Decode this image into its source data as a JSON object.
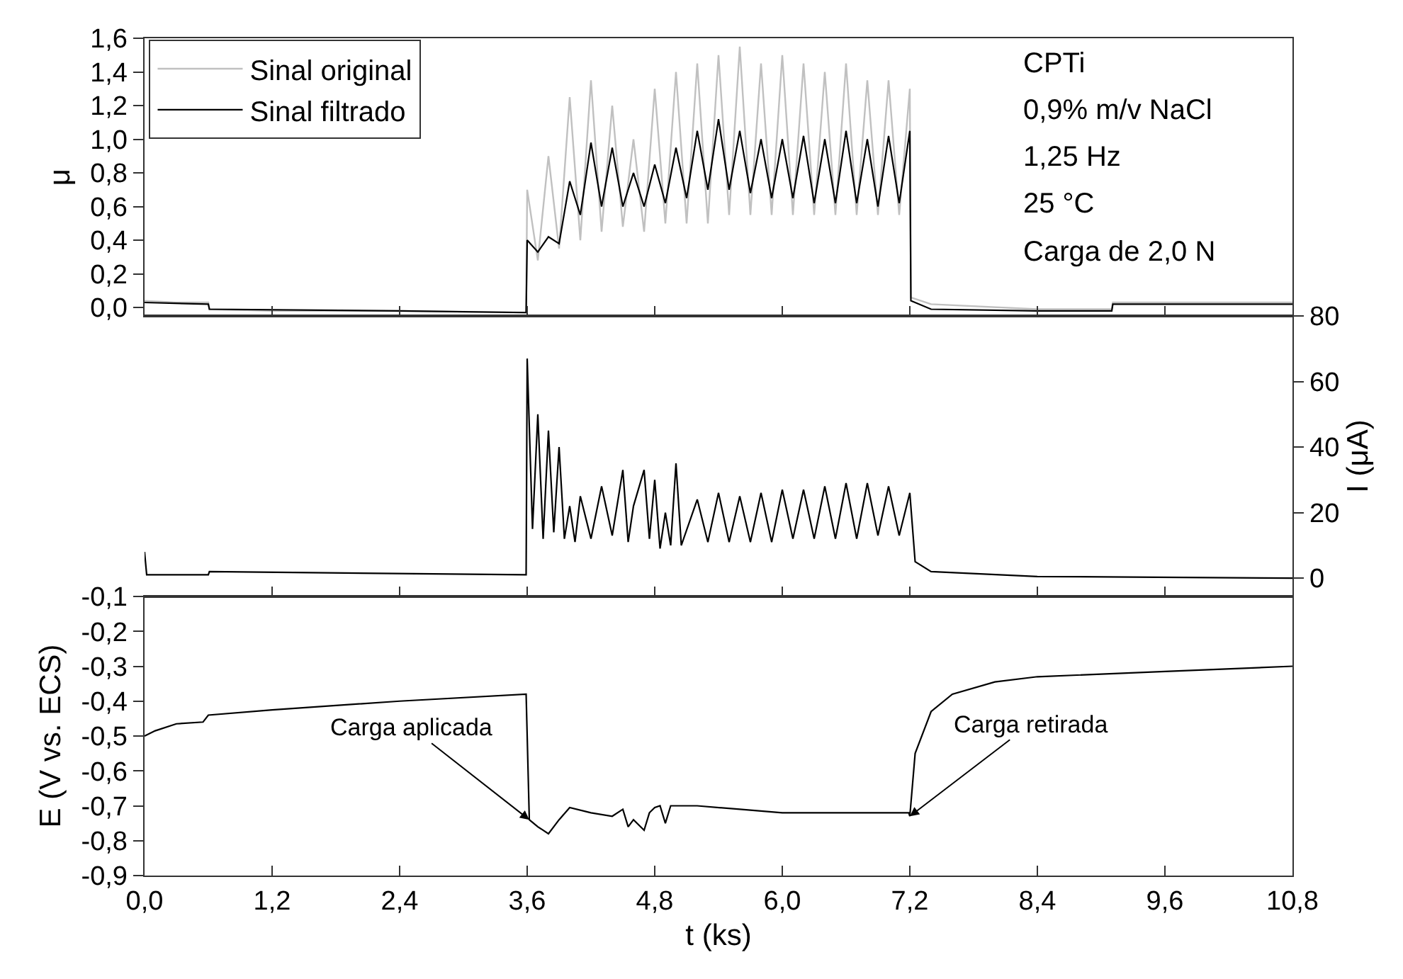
{
  "chart_data": [
    {
      "type": "line",
      "ylabel": "μ",
      "xlim": [
        0,
        10.8
      ],
      "xticks": [
        {
          "value": 0,
          "label": null
        },
        {
          "value": 1.2,
          "label": null
        },
        {
          "value": 2.4,
          "label": null
        },
        {
          "value": 3.6,
          "label": null
        },
        {
          "value": 4.8,
          "label": null
        },
        {
          "value": 6,
          "label": null
        },
        {
          "value": 7.2,
          "label": null
        },
        {
          "value": 8.4,
          "label": null
        },
        {
          "value": 9.6,
          "label": null
        },
        {
          "value": 10.8,
          "label": null
        }
      ],
      "ylim": [
        -0.05,
        1.6
      ],
      "yticks": [
        {
          "value": 0,
          "label": "0,0"
        },
        {
          "value": 0.2,
          "label": "0,2"
        },
        {
          "value": 0.4,
          "label": "0,4"
        },
        {
          "value": 0.6,
          "label": "0,6"
        },
        {
          "value": 0.8,
          "label": "0,8"
        },
        {
          "value": 1,
          "label": "1,0"
        },
        {
          "value": 1.2,
          "label": "1,2"
        },
        {
          "value": 1.4,
          "label": "1,4"
        },
        {
          "value": 1.6,
          "label": "1,6"
        }
      ],
      "tick_labels": "y",
      "legend": "top left",
      "annotations": [
        "CPTi",
        "0,9% m/v NaCl",
        "1,25 Hz",
        "25 °C",
        "Carga de 2,0 N"
      ],
      "series": [
        {
          "name": "Sinal original",
          "color": "#c0c0c0",
          "x": [
            0,
            0.3,
            0.6,
            0.61,
            1.2,
            2.4,
            3.59,
            3.6,
            3.7,
            3.8,
            3.9,
            4.0,
            4.1,
            4.2,
            4.3,
            4.4,
            4.5,
            4.6,
            4.7,
            4.8,
            4.9,
            5.0,
            5.1,
            5.2,
            5.3,
            5.4,
            5.5,
            5.6,
            5.7,
            5.8,
            5.9,
            6.0,
            6.1,
            6.2,
            6.3,
            6.4,
            6.5,
            6.6,
            6.7,
            6.8,
            6.9,
            7.0,
            7.1,
            7.2,
            7.21,
            7.4,
            8.4,
            9.1,
            9.11,
            10.8
          ],
          "values": [
            0.04,
            0.03,
            0.03,
            -0.01,
            -0.02,
            -0.02,
            -0.03,
            0.7,
            0.28,
            0.9,
            0.35,
            1.25,
            0.4,
            1.35,
            0.45,
            1.2,
            0.48,
            1.0,
            0.45,
            1.3,
            0.5,
            1.4,
            0.5,
            1.45,
            0.5,
            1.5,
            0.55,
            1.55,
            0.55,
            1.45,
            0.55,
            1.5,
            0.55,
            1.45,
            0.55,
            1.4,
            0.55,
            1.45,
            0.55,
            1.35,
            0.55,
            1.35,
            0.55,
            1.3,
            0.06,
            0.02,
            -0.01,
            -0.01,
            0.03,
            0.03
          ]
        },
        {
          "name": "Sinal filtrado",
          "color": "#000000",
          "x": [
            0,
            0.6,
            0.61,
            2.4,
            3.59,
            3.6,
            3.7,
            3.8,
            3.9,
            4.0,
            4.1,
            4.2,
            4.3,
            4.4,
            4.5,
            4.6,
            4.7,
            4.8,
            4.9,
            5.0,
            5.1,
            5.2,
            5.3,
            5.4,
            5.5,
            5.6,
            5.7,
            5.8,
            5.9,
            6.0,
            6.1,
            6.2,
            6.3,
            6.4,
            6.5,
            6.6,
            6.7,
            6.8,
            6.9,
            7.0,
            7.1,
            7.2,
            7.21,
            7.4,
            8.4,
            9.1,
            9.11,
            10.8
          ],
          "values": [
            0.03,
            0.02,
            -0.01,
            -0.02,
            -0.03,
            0.4,
            0.33,
            0.42,
            0.38,
            0.75,
            0.55,
            0.98,
            0.6,
            0.95,
            0.6,
            0.8,
            0.6,
            0.85,
            0.62,
            0.95,
            0.65,
            1.05,
            0.7,
            1.12,
            0.7,
            1.05,
            0.68,
            1.0,
            0.65,
            1.0,
            0.65,
            1.02,
            0.62,
            1.0,
            0.62,
            1.05,
            0.62,
            1.0,
            0.6,
            1.02,
            0.62,
            1.05,
            0.04,
            -0.01,
            -0.02,
            -0.02,
            0.02,
            0.02
          ]
        }
      ]
    },
    {
      "type": "line",
      "y2label": "I (μA)",
      "xlim": [
        0,
        10.8
      ],
      "xticks": [
        {
          "value": 0,
          "label": null
        },
        {
          "value": 1.2,
          "label": null
        },
        {
          "value": 2.4,
          "label": null
        },
        {
          "value": 3.6,
          "label": null
        },
        {
          "value": 4.8,
          "label": null
        },
        {
          "value": 6,
          "label": null
        },
        {
          "value": 7.2,
          "label": null
        },
        {
          "value": 8.4,
          "label": null
        },
        {
          "value": 9.6,
          "label": null
        },
        {
          "value": 10.8,
          "label": null
        }
      ],
      "y2lim": [
        -5.6,
        80
      ],
      "y2ticks": [
        0,
        20,
        40,
        60,
        80
      ],
      "tick_labels": "y",
      "series": [
        {
          "color": "#000000",
          "axis": "y2",
          "x": [
            0,
            0.02,
            0.6,
            0.61,
            3.59,
            3.6,
            3.65,
            3.7,
            3.75,
            3.8,
            3.85,
            3.9,
            3.95,
            4.0,
            4.05,
            4.1,
            4.2,
            4.3,
            4.4,
            4.5,
            4.55,
            4.6,
            4.7,
            4.75,
            4.8,
            4.85,
            4.9,
            4.95,
            5.0,
            5.05,
            5.2,
            5.3,
            5.4,
            5.5,
            5.6,
            5.7,
            5.8,
            5.9,
            6.0,
            6.1,
            6.2,
            6.3,
            6.4,
            6.5,
            6.6,
            6.7,
            6.8,
            6.9,
            7.0,
            7.1,
            7.2,
            7.25,
            7.4,
            8.4,
            10.8
          ],
          "values": [
            8,
            1,
            1,
            2,
            1,
            67,
            15,
            50,
            12,
            45,
            14,
            40,
            12,
            22,
            11,
            25,
            12,
            28,
            13,
            33,
            11,
            22,
            33,
            12,
            30,
            9,
            20,
            10,
            35,
            10,
            24,
            11,
            26,
            11,
            25,
            11,
            26,
            11,
            27,
            12,
            27,
            12,
            28,
            12,
            29,
            12,
            29,
            13,
            28,
            13,
            26,
            5,
            2,
            0.5,
            0
          ]
        }
      ]
    },
    {
      "type": "line",
      "xlabel": "t (ks)",
      "ylabel": "E (V vs. ECS)",
      "xlim": [
        0,
        10.8
      ],
      "xticks": [
        {
          "value": 0,
          "label": "0,0"
        },
        {
          "value": 1.2,
          "label": "1,2"
        },
        {
          "value": 2.4,
          "label": "2,4"
        },
        {
          "value": 3.6,
          "label": "3,6"
        },
        {
          "value": 4.8,
          "label": "4,8"
        },
        {
          "value": 6,
          "label": "6,0"
        },
        {
          "value": 7.2,
          "label": "7,2"
        },
        {
          "value": 8.4,
          "label": "8,4"
        },
        {
          "value": 9.6,
          "label": "9,6"
        },
        {
          "value": 10.8,
          "label": "10,8"
        }
      ],
      "ylim": [
        -0.9,
        -0.1
      ],
      "yticks": [
        {
          "value": -0.1,
          "label": "-0,1"
        },
        {
          "value": -0.2,
          "label": "-0,2"
        },
        {
          "value": -0.3,
          "label": "-0,3"
        },
        {
          "value": -0.4,
          "label": "-0,4"
        },
        {
          "value": -0.5,
          "label": "-0,5"
        },
        {
          "value": -0.6,
          "label": "-0,6"
        },
        {
          "value": -0.7,
          "label": "-0,7"
        },
        {
          "value": -0.8,
          "label": "-0,8"
        },
        {
          "value": -0.9,
          "label": "-0,9"
        }
      ],
      "annotations": [
        {
          "text": "Carga aplicada",
          "x": 3.62,
          "y": -0.74
        },
        {
          "text": "Carga retirada",
          "x": 7.2,
          "y": -0.73
        }
      ],
      "series": [
        {
          "color": "#000000",
          "x": [
            0,
            0.1,
            0.3,
            0.55,
            0.6,
            1.2,
            2.4,
            3.59,
            3.62,
            3.7,
            3.8,
            3.9,
            4.0,
            4.2,
            4.4,
            4.5,
            4.55,
            4.6,
            4.7,
            4.75,
            4.8,
            4.85,
            4.9,
            4.95,
            5.2,
            5.6,
            6.0,
            6.4,
            6.8,
            7.19,
            7.2,
            7.25,
            7.4,
            7.6,
            8.0,
            8.4,
            9.6,
            10.8
          ],
          "values": [
            -0.5,
            -0.485,
            -0.465,
            -0.46,
            -0.44,
            -0.425,
            -0.4,
            -0.38,
            -0.74,
            -0.76,
            -0.78,
            -0.74,
            -0.705,
            -0.72,
            -0.73,
            -0.71,
            -0.76,
            -0.74,
            -0.77,
            -0.72,
            -0.705,
            -0.7,
            -0.75,
            -0.7,
            -0.7,
            -0.71,
            -0.72,
            -0.72,
            -0.72,
            -0.72,
            -0.73,
            -0.55,
            -0.43,
            -0.38,
            -0.345,
            -0.33,
            -0.315,
            -0.3
          ]
        }
      ]
    }
  ]
}
